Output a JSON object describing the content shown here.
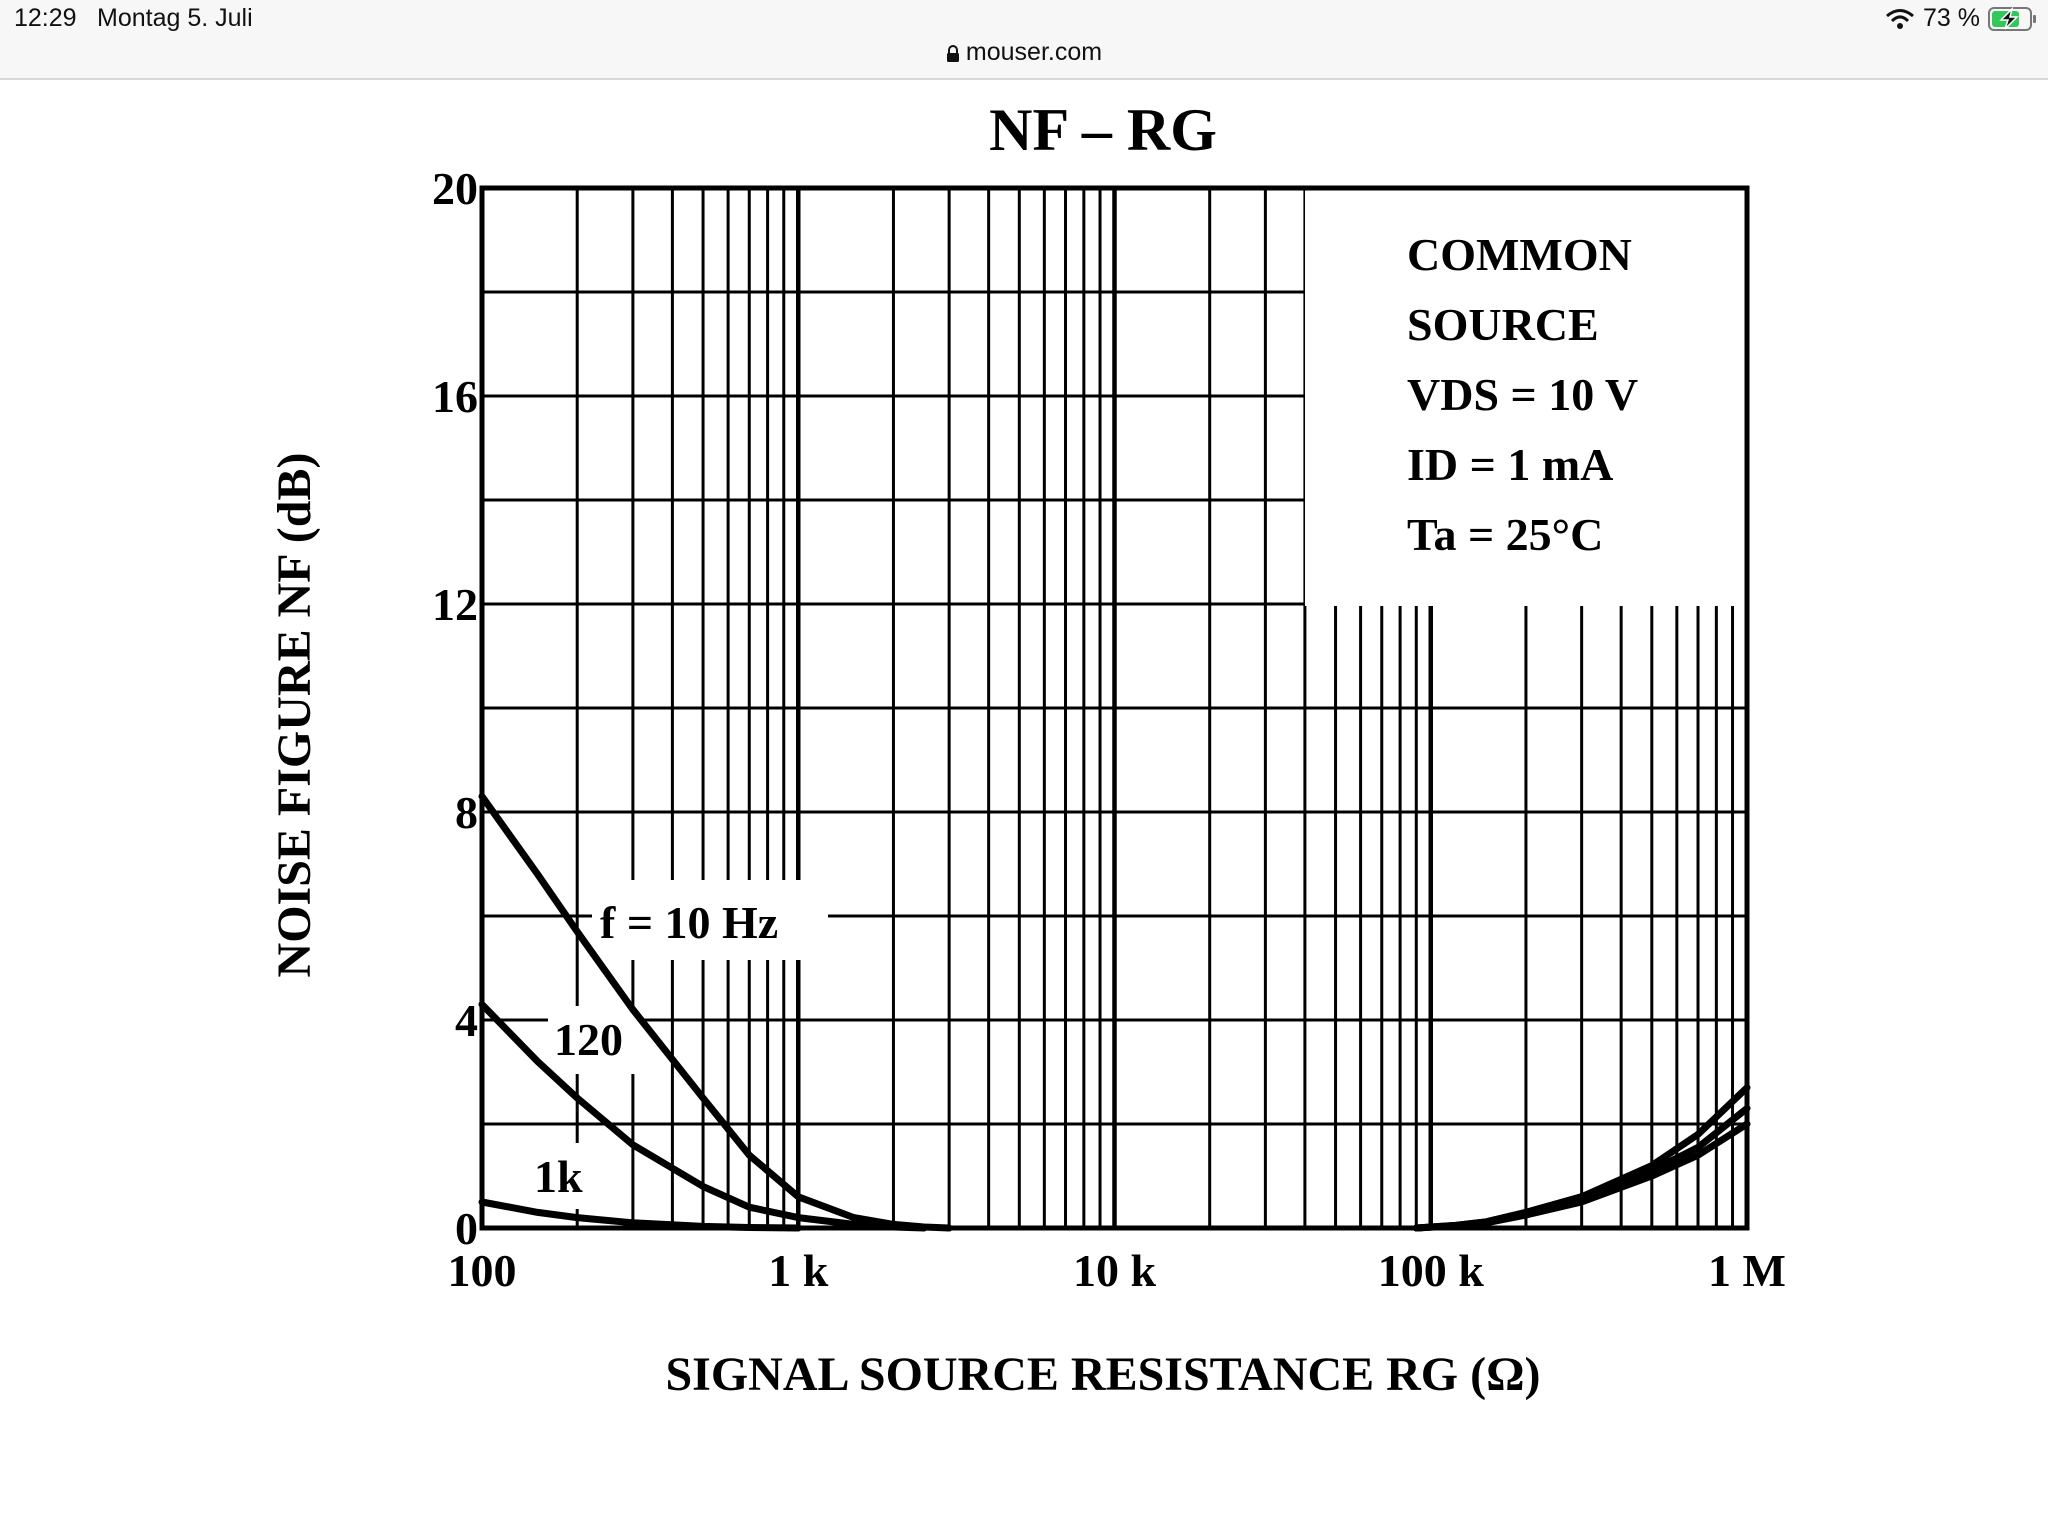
{
  "status_bar": {
    "time": "12:29",
    "date": "Montag 5. Juli",
    "url": "mouser.com",
    "battery": "73 %"
  },
  "chart_data": {
    "type": "line",
    "title": "NF – RG",
    "xlabel": "SIGNAL SOURCE RESISTANCE RG (Ω)",
    "ylabel": "NOISE FIGURE NF (dB)",
    "xscale": "log",
    "xlim": [
      100,
      1000000
    ],
    "ylim": [
      0,
      20
    ],
    "grid": true,
    "x_ticks": [
      {
        "value": 100,
        "label": "100"
      },
      {
        "value": 1000,
        "label": "1 k"
      },
      {
        "value": 10000,
        "label": "10 k"
      },
      {
        "value": 100000,
        "label": "100 k"
      },
      {
        "value": 1000000,
        "label": "1 M"
      }
    ],
    "y_ticks": [
      {
        "value": 0,
        "label": "0"
      },
      {
        "value": 4,
        "label": "4"
      },
      {
        "value": 8,
        "label": "8"
      },
      {
        "value": 12,
        "label": "12"
      },
      {
        "value": 16,
        "label": "16"
      },
      {
        "value": 20,
        "label": "20"
      }
    ],
    "conditions": {
      "line1": "COMMON",
      "line2": "SOURCE",
      "vds": "VDS = 10 V",
      "id": "ID = 1 mA",
      "ta": "Ta = 25°C"
    },
    "series": [
      {
        "name": "f = 10 Hz",
        "x": [
          100,
          150,
          200,
          300,
          500,
          700,
          1000,
          1500,
          2000,
          2500,
          3000
        ],
        "y": [
          8.3,
          6.8,
          5.7,
          4.2,
          2.5,
          1.4,
          0.6,
          0.2,
          0.07,
          0.02,
          0
        ]
      },
      {
        "name": "120",
        "x": [
          100,
          150,
          200,
          300,
          500,
          700,
          1000,
          1500,
          2000,
          2500
        ],
        "y": [
          4.3,
          3.2,
          2.5,
          1.6,
          0.8,
          0.4,
          0.2,
          0.07,
          0.02,
          0
        ]
      },
      {
        "name": "1k",
        "x": [
          100,
          150,
          200,
          300,
          500,
          700,
          1000
        ],
        "y": [
          0.5,
          0.3,
          0.2,
          0.1,
          0.03,
          0.01,
          0
        ]
      },
      {
        "name": "",
        "x": [
          90000,
          120000,
          150000,
          200000,
          300000,
          500000,
          700000,
          1000000
        ],
        "y": [
          0,
          0.05,
          0.12,
          0.3,
          0.6,
          1.2,
          1.8,
          2.7
        ]
      },
      {
        "name": "",
        "x": [
          90000,
          120000,
          150000,
          200000,
          300000,
          500000,
          700000,
          1000000
        ],
        "y": [
          0,
          0.05,
          0.12,
          0.3,
          0.6,
          1.1,
          1.55,
          2.3
        ]
      },
      {
        "name": "",
        "x": [
          90000,
          120000,
          150000,
          200000,
          300000,
          500000,
          700000,
          1000000
        ],
        "y": [
          0,
          0.04,
          0.1,
          0.25,
          0.5,
          1.0,
          1.4,
          2.0
        ]
      }
    ]
  }
}
